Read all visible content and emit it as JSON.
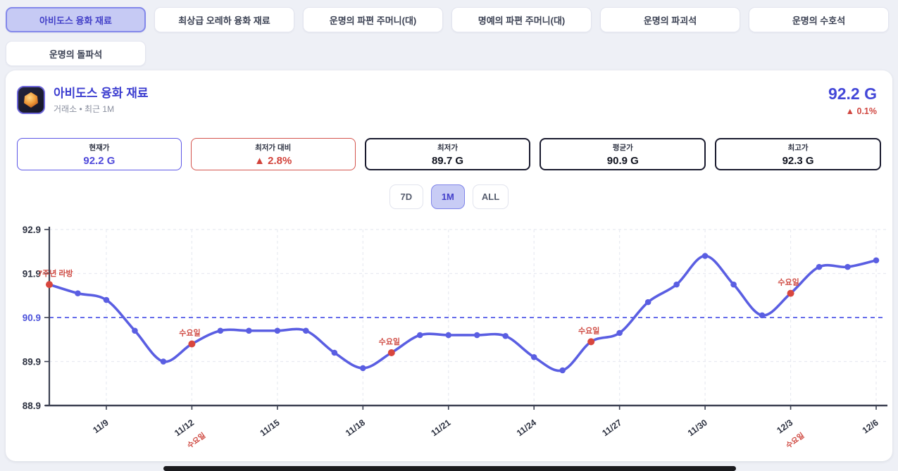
{
  "tabs": [
    {
      "label": "아비도스 융화 재료",
      "selected": true
    },
    {
      "label": "최상급 오레하 융화 재료",
      "selected": false
    },
    {
      "label": "운명의 파편 주머니(대)",
      "selected": false
    },
    {
      "label": "명예의 파편 주머니(대)",
      "selected": false
    },
    {
      "label": "운명의 파괴석",
      "selected": false
    },
    {
      "label": "운명의 수호석",
      "selected": false
    },
    {
      "label": "운명의 돌파석",
      "selected": false
    }
  ],
  "item": {
    "icon": "gem-icon",
    "title": "아비도스 융화 재료",
    "subtitle": "거래소 • 최근 1M",
    "price": "92.2 G",
    "change": "▲ 0.1%"
  },
  "stats": [
    {
      "label": "현재가",
      "value": "92.2 G",
      "style": "accent"
    },
    {
      "label": "최저가 대비",
      "value": "▲ 2.8%",
      "style": "up"
    },
    {
      "label": "최저가",
      "value": "89.7 G",
      "style": "dark"
    },
    {
      "label": "평균가",
      "value": "90.9 G",
      "style": "dark"
    },
    {
      "label": "최고가",
      "value": "92.3 G",
      "style": "dark"
    }
  ],
  "ranges": [
    {
      "label": "7D",
      "selected": false
    },
    {
      "label": "1M",
      "selected": true
    },
    {
      "label": "ALL",
      "selected": false
    }
  ],
  "chart_data": {
    "type": "line",
    "x": [
      "11/7",
      "11/8",
      "11/9",
      "11/10",
      "11/11",
      "11/12",
      "11/13",
      "11/14",
      "11/15",
      "11/16",
      "11/17",
      "11/18",
      "11/19",
      "11/20",
      "11/21",
      "11/22",
      "11/23",
      "11/24",
      "11/25",
      "11/26",
      "11/27",
      "11/28",
      "11/29",
      "11/30",
      "12/1",
      "12/2",
      "12/3",
      "12/4",
      "12/5",
      "12/6"
    ],
    "values": [
      91.65,
      91.45,
      91.3,
      90.6,
      89.9,
      90.3,
      90.6,
      90.6,
      90.6,
      90.6,
      90.1,
      89.75,
      90.1,
      90.5,
      90.5,
      90.5,
      90.48,
      90.0,
      89.7,
      90.35,
      90.55,
      91.25,
      91.65,
      92.3,
      91.65,
      90.95,
      91.45,
      92.05,
      92.05,
      92.2
    ],
    "xticks": [
      "11/9",
      "11/12",
      "11/15",
      "11/18",
      "11/21",
      "11/24",
      "11/27",
      "11/30",
      "12/3",
      "12/6"
    ],
    "yticks": [
      92.9,
      91.9,
      90.9,
      89.9,
      88.9
    ],
    "ylim": [
      88.9,
      92.9
    ],
    "avg_line": 90.9,
    "annotations": [
      {
        "x": "11/7",
        "label": "7주년 라방"
      },
      {
        "x": "11/12",
        "label": "수요일"
      },
      {
        "x": "11/19",
        "label": "수요일"
      },
      {
        "x": "11/26",
        "label": "수요일"
      },
      {
        "x": "12/3",
        "label": "수요일"
      }
    ],
    "xtick_sublabels": [
      {
        "x": "11/12",
        "label": "수요일"
      },
      {
        "x": "12/3",
        "label": "수요일"
      }
    ],
    "colors": {
      "line": "#5a5ee2",
      "point": "#5a5ee2",
      "highlight_point": "#d8463e",
      "annotation_text": "#cf4a42",
      "avg_line": "#5157e8",
      "avg_tick_label": "#4c52da",
      "axis": "#3c4152",
      "tick_label": "#2c3140",
      "grid": "#e8eaf1"
    }
  }
}
